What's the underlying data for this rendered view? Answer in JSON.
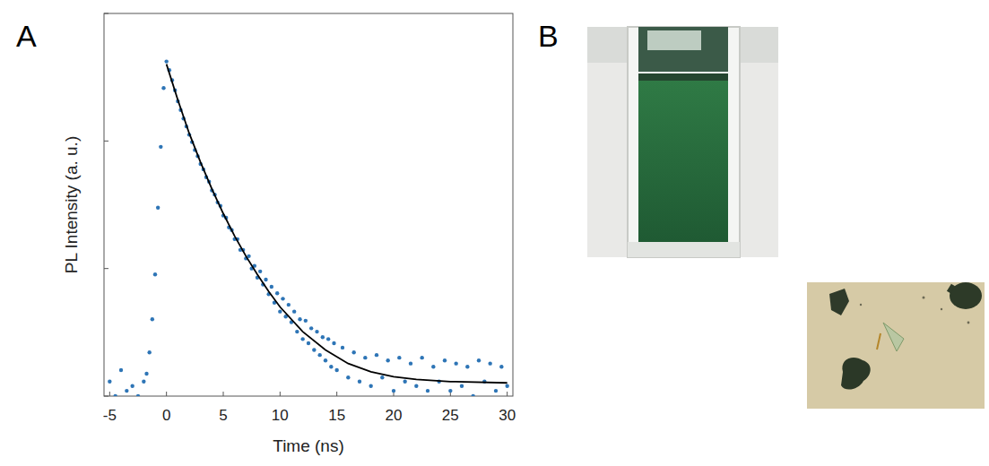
{
  "panel_labels": [
    "A",
    "B"
  ],
  "chart_data": {
    "type": "scatter",
    "x_label": "Time (ns)",
    "y_label": "PL Intensity (a. u.)",
    "xlim": [
      -5.5,
      30.5
    ],
    "xticks": [
      -5,
      0,
      5,
      10,
      15,
      20,
      25,
      30
    ],
    "ylim": [
      1,
      1000
    ],
    "yticks": [
      1,
      10,
      100,
      1000
    ],
    "log": "y",
    "grid": false,
    "tick_labels": "x",
    "series": [
      {
        "type": "scatter",
        "color": "#2e75b6",
        "marker": "circle",
        "x": [
          -5,
          -4.5,
          -4,
          -3.5,
          -3,
          -2.5,
          -2,
          -1.75,
          -1.5,
          -1.25,
          -1,
          -0.75,
          -0.5,
          -0.25,
          0,
          0.25,
          0.5,
          0.75,
          1,
          1.25,
          1.5,
          1.75,
          2,
          2.25,
          2.5,
          2.75,
          3,
          3.25,
          3.5,
          3.75,
          4,
          4.25,
          4.5,
          4.75,
          5,
          5.25,
          5.5,
          5.75,
          6,
          6.25,
          6.5,
          6.75,
          7,
          7.25,
          7.5,
          7.75,
          8,
          8.25,
          8.5,
          8.75,
          9,
          9.25,
          9.5,
          9.75,
          10,
          10.25,
          10.5,
          10.75,
          11,
          11.25,
          11.5,
          11.75,
          12,
          12.25,
          12.5,
          12.75,
          13,
          13.25,
          13.5,
          13.75,
          14,
          14.25,
          14.5,
          14.75,
          15,
          15.5,
          16,
          16.5,
          17,
          17.5,
          18,
          18.5,
          19,
          19.5,
          20,
          20.5,
          21,
          21.5,
          22,
          22.5,
          23,
          23.5,
          24,
          24.5,
          25,
          25.5,
          26,
          26.5,
          27,
          27.5,
          28,
          28.5,
          29,
          29.5,
          30
        ],
        "values": [
          1.3,
          1.0,
          1.6,
          1.1,
          1.2,
          1.0,
          1.3,
          1.5,
          2.2,
          4,
          9,
          30,
          90,
          260,
          420,
          360,
          300,
          250,
          205,
          175,
          150,
          130,
          112,
          98,
          85,
          76,
          66,
          60,
          52,
          48,
          41,
          38,
          33,
          31,
          26,
          25,
          21,
          20,
          17,
          17,
          14,
          14,
          12,
          12.5,
          10,
          10.5,
          8.5,
          9.5,
          7.5,
          8.2,
          6.3,
          7.2,
          5.4,
          6.4,
          4.6,
          5.8,
          4.2,
          5.2,
          3.8,
          4.6,
          3.2,
          4.0,
          2.8,
          3.9,
          2.6,
          3.4,
          2.3,
          3.2,
          2.1,
          2.9,
          1.9,
          2.8,
          1.7,
          2.6,
          1.6,
          2.4,
          1.4,
          2.2,
          1.3,
          2.0,
          1.2,
          2.1,
          1.4,
          1.9,
          1.1,
          2.0,
          1.3,
          1.8,
          1.2,
          2.0,
          1.1,
          1.7,
          1.3,
          1.9,
          1.1,
          1.8,
          1.2,
          1.7,
          1.0,
          1.9,
          1.3,
          1.8,
          1.1,
          1.7,
          1.2
        ]
      },
      {
        "type": "line",
        "color": "#000000",
        "line_style": "solid",
        "x": [
          0,
          1,
          2,
          3,
          4,
          5,
          6,
          7,
          8,
          9,
          10,
          12,
          14,
          16,
          18,
          20,
          22,
          25,
          30
        ],
        "values": [
          400,
          210,
          115,
          68,
          42,
          27,
          18,
          12.5,
          9,
          6.6,
          5,
          3.2,
          2.3,
          1.8,
          1.55,
          1.42,
          1.35,
          1.3,
          1.27
        ]
      }
    ]
  }
}
